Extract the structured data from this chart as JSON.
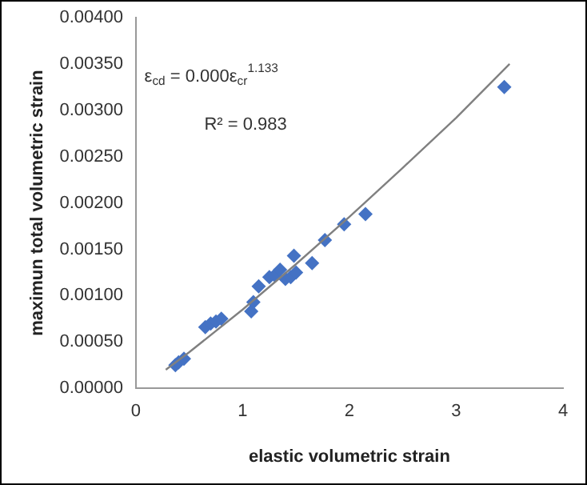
{
  "chart_data": {
    "type": "scatter",
    "xlabel": "elastic volumetric strain",
    "ylabel": "maximun total volumetric strain",
    "xlim": [
      0,
      4
    ],
    "xticks": [
      0,
      1,
      2,
      3,
      4
    ],
    "ylim": [
      0,
      0.004
    ],
    "yticks": [
      {
        "value": 0,
        "label": "0.00000"
      },
      {
        "value": 0.0005,
        "label": "0.00050"
      },
      {
        "value": 0.001,
        "label": "0.00100"
      },
      {
        "value": 0.0015,
        "label": "0.00150"
      },
      {
        "value": 0.002,
        "label": "0.00200"
      },
      {
        "value": 0.0025,
        "label": "0.00250"
      },
      {
        "value": 0.003,
        "label": "0.00300"
      },
      {
        "value": 0.0035,
        "label": "0.00350"
      },
      {
        "value": 0.004,
        "label": "0.00400"
      }
    ],
    "grid": false,
    "legend": false,
    "marker": "diamond",
    "series": [
      {
        "type": "scatter",
        "color": "#4472c4",
        "x": [
          0.37,
          0.4,
          0.45,
          0.65,
          0.7,
          0.75,
          0.8,
          1.08,
          1.1,
          1.15,
          1.25,
          1.3,
          1.35,
          1.4,
          1.45,
          1.48,
          1.5,
          1.65,
          1.77,
          1.95,
          2.15,
          3.45
        ],
        "values": [
          0.00025,
          0.00028,
          0.00032,
          0.00066,
          0.0007,
          0.00072,
          0.00075,
          0.00083,
          0.00093,
          0.0011,
          0.0012,
          0.00122,
          0.00128,
          0.00118,
          0.0012,
          0.00143,
          0.00125,
          0.00135,
          0.0016,
          0.00177,
          0.00188,
          0.00325
        ]
      },
      {
        "type": "line",
        "color": "#808080",
        "marker": "none",
        "x": [
          0.28,
          0.5,
          1,
          1.5,
          2,
          2.5,
          3,
          3.5
        ],
        "values": [
          0.0002,
          0.00039,
          0.00085,
          0.00134,
          0.00185,
          0.00238,
          0.00292,
          0.0035
        ]
      }
    ],
    "annotations": [
      "ε$_{cd}$ = 0.000ε$_{cr}$$^{1.133}$",
      "R² = 0.983"
    ]
  }
}
